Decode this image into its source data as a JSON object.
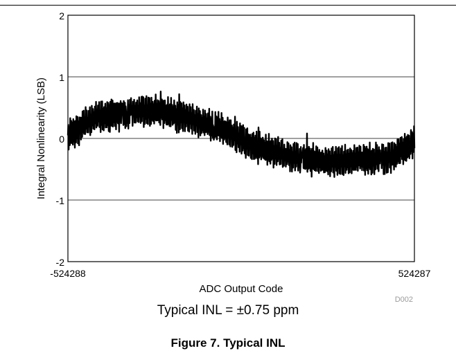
{
  "chart_data": {
    "type": "line",
    "xlabel": "ADC Output Code",
    "ylabel": "Integral Nonlinearity (LSB)",
    "x_ticks": [
      "-524288",
      "524287"
    ],
    "y_ticks": [
      "2",
      "1",
      "0",
      "-1",
      "-2"
    ],
    "xlim": [
      -524288,
      524287
    ],
    "ylim": [
      -2,
      2
    ],
    "grid": "horizontal",
    "series": [
      {
        "color": "#000000",
        "x": [
          -524288,
          -440000,
          -330000,
          -250000,
          -160000,
          -60000,
          50000,
          160000,
          260000,
          350000,
          450000,
          524287
        ],
        "y": [
          0.05,
          0.35,
          0.42,
          0.45,
          0.33,
          0.15,
          -0.15,
          -0.3,
          -0.38,
          -0.35,
          -0.32,
          -0.05
        ],
        "band_halfwidth": 0.28
      }
    ]
  },
  "watermark": "D002",
  "note": "Typical INL = ±0.75 ppm",
  "figure_caption": "Figure 7. Typical INL"
}
